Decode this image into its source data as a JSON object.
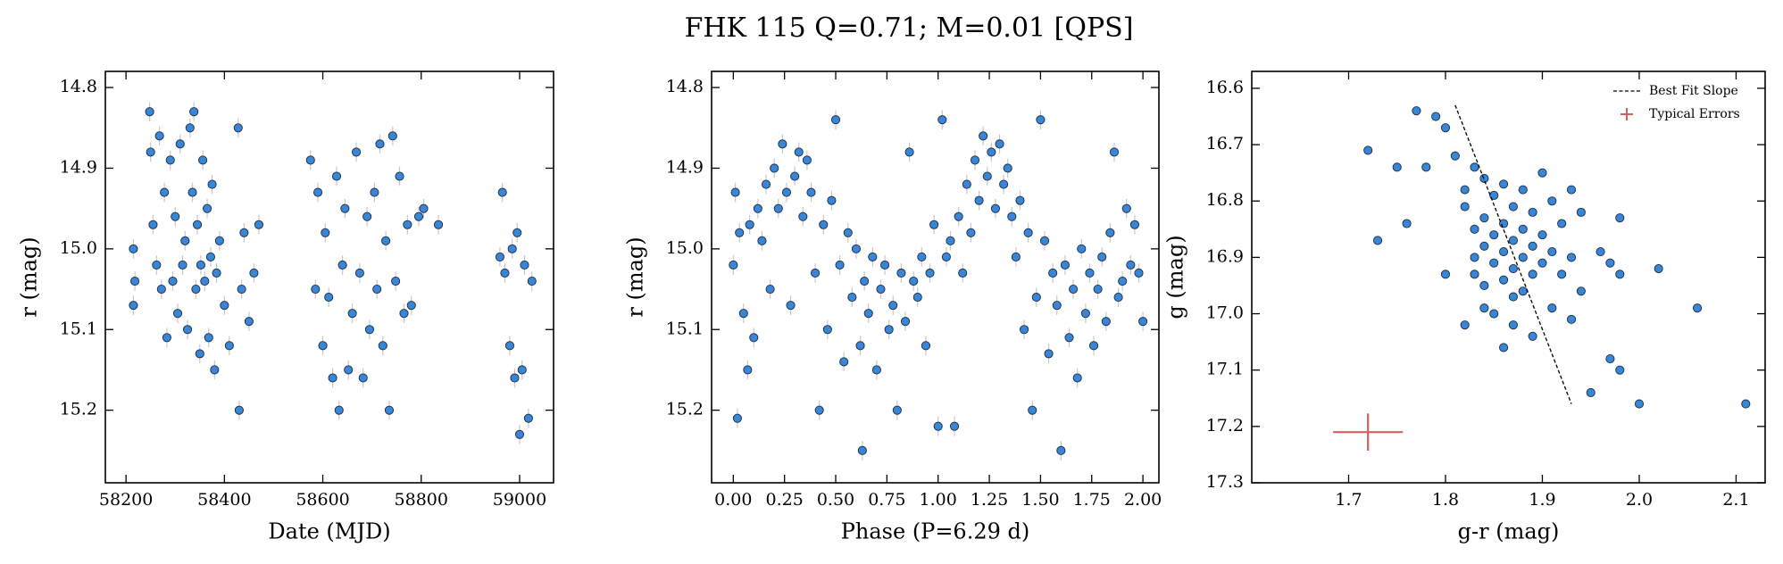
{
  "title": "FHK 115  Q=0.71; M=0.01 [QPS]",
  "chart_data": [
    {
      "type": "scatter",
      "x_label": "Date (MJD)",
      "y_label": "r (mag)",
      "xlim": [
        58158,
        59069
      ],
      "ylim": [
        15.29,
        14.78
      ],
      "xticks": [
        58200,
        58400,
        58600,
        58800,
        59000
      ],
      "yticks": [
        14.8,
        14.9,
        {
          "value": 15,
          "label": "15.0"
        },
        15.1,
        15.2
      ],
      "series": [
        {
          "color": "#3a86d6",
          "yerr": 0.012,
          "x": [
            58215,
            58215,
            58218,
            58248,
            58250,
            58255,
            58262,
            58268,
            58272,
            58278,
            58283,
            58290,
            58295,
            58300,
            58305,
            58310,
            58315,
            58320,
            58325,
            58330,
            58335,
            58338,
            58342,
            58345,
            58350,
            58352,
            58356,
            58360,
            58365,
            58368,
            58372,
            58375,
            58380,
            58384,
            58390,
            58400,
            58410,
            58428,
            58430,
            58435,
            58440,
            58450,
            58460,
            58470,
            58575,
            58585,
            58590,
            58600,
            58605,
            58612,
            58620,
            58628,
            58633,
            58640,
            58645,
            58652,
            58660,
            58668,
            58675,
            58682,
            58690,
            58695,
            58705,
            58710,
            58716,
            58722,
            58728,
            58735,
            58742,
            58748,
            58756,
            58765,
            58772,
            58780,
            58795,
            58805,
            58835,
            58960,
            58965,
            58970,
            58980,
            58985,
            58990,
            58995,
            59000,
            59005,
            59010,
            59018,
            59025
          ],
          "values": [
            15.0,
            15.07,
            15.04,
            14.83,
            14.88,
            14.97,
            15.02,
            14.86,
            15.05,
            14.93,
            15.11,
            14.89,
            15.04,
            14.96,
            15.08,
            14.87,
            15.02,
            14.99,
            15.1,
            14.85,
            14.93,
            14.83,
            15.05,
            14.97,
            15.13,
            15.02,
            14.89,
            15.04,
            14.95,
            15.11,
            15.01,
            14.92,
            15.15,
            15.03,
            14.99,
            15.07,
            15.12,
            14.85,
            15.2,
            15.05,
            14.98,
            15.09,
            15.03,
            14.97,
            14.89,
            15.05,
            14.93,
            15.12,
            14.98,
            15.06,
            15.16,
            14.91,
            15.2,
            15.02,
            14.95,
            15.15,
            15.08,
            14.88,
            15.03,
            15.16,
            14.96,
            15.1,
            14.93,
            15.05,
            14.87,
            15.12,
            14.99,
            15.2,
            14.86,
            15.04,
            14.91,
            15.08,
            14.97,
            15.07,
            14.96,
            14.95,
            14.97,
            15.01,
            14.93,
            15.03,
            15.12,
            15.0,
            15.16,
            14.98,
            15.23,
            15.15,
            15.02,
            15.21,
            15.04
          ]
        }
      ]
    },
    {
      "type": "scatter",
      "x_label": "Phase (P=6.29 d)",
      "y_label": "r (mag)",
      "xlim": [
        -0.106,
        2.078
      ],
      "ylim": [
        15.29,
        14.78
      ],
      "xticks": [
        {
          "value": 0,
          "label": "0.00"
        },
        {
          "value": 0.25,
          "label": "0.25"
        },
        {
          "value": 0.5,
          "label": "0.50"
        },
        {
          "value": 0.75,
          "label": "0.75"
        },
        {
          "value": 1,
          "label": "1.00"
        },
        {
          "value": 1.25,
          "label": "1.25"
        },
        {
          "value": 1.5,
          "label": "1.50"
        },
        {
          "value": 1.75,
          "label": "1.75"
        },
        {
          "value": 2,
          "label": "2.00"
        }
      ],
      "yticks": [
        14.8,
        14.9,
        {
          "value": 15,
          "label": "15.0"
        },
        15.1,
        15.2
      ],
      "series": [
        {
          "color": "#3a86d6",
          "yerr": 0.012,
          "x": [
            0.0,
            0.01,
            0.02,
            0.03,
            0.05,
            0.07,
            0.08,
            0.1,
            0.12,
            0.14,
            0.16,
            0.18,
            0.2,
            0.22,
            0.24,
            0.26,
            0.28,
            0.3,
            0.32,
            0.34,
            0.36,
            0.38,
            0.4,
            0.42,
            0.44,
            0.46,
            0.48,
            0.5,
            0.52,
            0.54,
            0.56,
            0.58,
            0.6,
            0.62,
            0.63,
            0.64,
            0.66,
            0.68,
            0.7,
            0.72,
            0.74,
            0.76,
            0.78,
            0.8,
            0.82,
            0.84,
            0.86,
            0.88,
            0.9,
            0.92,
            0.94,
            0.96,
            0.98,
            1.0,
            1.02,
            1.04,
            1.06,
            1.08,
            1.1,
            1.12,
            1.14,
            1.16,
            1.18,
            1.2,
            1.22,
            1.24,
            1.26,
            1.28,
            1.3,
            1.32,
            1.34,
            1.36,
            1.38,
            1.4,
            1.42,
            1.44,
            1.46,
            1.48,
            1.5,
            1.52,
            1.54,
            1.56,
            1.58,
            1.6,
            1.62,
            1.64,
            1.66,
            1.68,
            1.7,
            1.72,
            1.74,
            1.76,
            1.78,
            1.8,
            1.82,
            1.84,
            1.86,
            1.88,
            1.9,
            1.92,
            1.94,
            1.96,
            1.98,
            2.0
          ],
          "values": [
            15.02,
            14.93,
            15.21,
            14.98,
            15.08,
            15.15,
            14.97,
            15.11,
            14.95,
            14.99,
            14.92,
            15.05,
            14.9,
            14.95,
            14.87,
            14.93,
            15.07,
            14.91,
            14.88,
            14.96,
            14.89,
            14.93,
            15.03,
            15.2,
            14.97,
            15.1,
            14.94,
            14.84,
            15.02,
            15.14,
            14.98,
            15.06,
            15.0,
            15.12,
            15.25,
            15.04,
            15.08,
            15.01,
            15.15,
            15.05,
            15.02,
            15.1,
            15.07,
            15.2,
            15.03,
            15.09,
            14.88,
            15.04,
            15.06,
            15.01,
            15.12,
            15.03,
            14.97,
            15.22,
            14.84,
            15.01,
            14.99,
            15.22,
            14.96,
            15.03,
            14.92,
            14.98,
            14.89,
            14.94,
            14.86,
            14.91,
            14.88,
            14.95,
            14.87,
            14.92,
            14.9,
            14.96,
            15.01,
            14.94,
            15.1,
            14.98,
            15.2,
            15.06,
            14.84,
            14.99,
            15.13,
            15.03,
            15.07,
            15.25,
            15.02,
            15.11,
            15.05,
            15.16,
            15.0,
            15.08,
            15.03,
            15.12,
            15.05,
            15.01,
            15.09,
            14.98,
            14.88,
            15.06,
            15.04,
            14.95,
            15.02,
            14.97,
            15.03,
            15.09
          ]
        }
      ]
    },
    {
      "type": "scatter",
      "x_label": "g-r (mag)",
      "y_label": "g (mag)",
      "xlim": [
        1.6,
        2.13
      ],
      "ylim": [
        17.3,
        16.57
      ],
      "xticks": [
        1.7,
        1.8,
        1.9,
        {
          "value": 2,
          "label": "2.0"
        },
        2.1
      ],
      "yticks": [
        16.6,
        16.7,
        16.8,
        16.9,
        {
          "value": 17,
          "label": "17.0"
        },
        17.1,
        17.2,
        17.3
      ],
      "legend": "upper right",
      "series": [
        {
          "color": "#3a86d6",
          "x": [
            1.72,
            1.73,
            1.75,
            1.76,
            1.77,
            1.78,
            1.79,
            1.8,
            1.8,
            1.81,
            1.82,
            1.82,
            1.82,
            1.83,
            1.83,
            1.83,
            1.84,
            1.84,
            1.84,
            1.84,
            1.85,
            1.85,
            1.85,
            1.85,
            1.86,
            1.86,
            1.86,
            1.86,
            1.86,
            1.87,
            1.87,
            1.87,
            1.87,
            1.88,
            1.88,
            1.88,
            1.88,
            1.89,
            1.89,
            1.89,
            1.89,
            1.9,
            1.9,
            1.9,
            1.91,
            1.91,
            1.91,
            1.92,
            1.92,
            1.93,
            1.93,
            1.94,
            1.94,
            1.95,
            1.96,
            1.97,
            1.98,
            1.98,
            1.97,
            1.98,
            2.0,
            2.02,
            2.06,
            2.11,
            1.93,
            1.87,
            1.84,
            1.83
          ],
          "values": [
            16.71,
            16.87,
            16.74,
            16.84,
            16.64,
            16.74,
            16.65,
            16.67,
            16.93,
            16.72,
            16.78,
            16.81,
            17.02,
            16.74,
            16.85,
            16.9,
            16.76,
            16.83,
            16.88,
            16.95,
            16.79,
            16.86,
            16.91,
            17.0,
            16.77,
            16.84,
            16.89,
            16.94,
            17.06,
            16.81,
            16.87,
            16.92,
            16.97,
            16.78,
            16.85,
            16.9,
            16.96,
            16.82,
            16.88,
            16.93,
            17.04,
            16.75,
            16.86,
            16.91,
            16.8,
            16.89,
            16.99,
            16.84,
            16.93,
            16.78,
            16.9,
            16.82,
            16.96,
            17.14,
            16.89,
            16.91,
            16.83,
            16.93,
            17.08,
            17.1,
            17.16,
            16.92,
            16.99,
            17.16,
            17.01,
            17.02,
            16.99,
            16.93
          ]
        }
      ],
      "fit_line": {
        "name": "Best Fit Slope",
        "color": "#000000",
        "x": [
          1.81,
          1.93
        ],
        "values": [
          16.63,
          17.16
        ]
      },
      "typical_error": {
        "name": "Typical Errors",
        "color": "#d65f5f",
        "x": 1.72,
        "value": 17.21,
        "xerr": 0.036,
        "yerr": 0.033
      }
    }
  ]
}
